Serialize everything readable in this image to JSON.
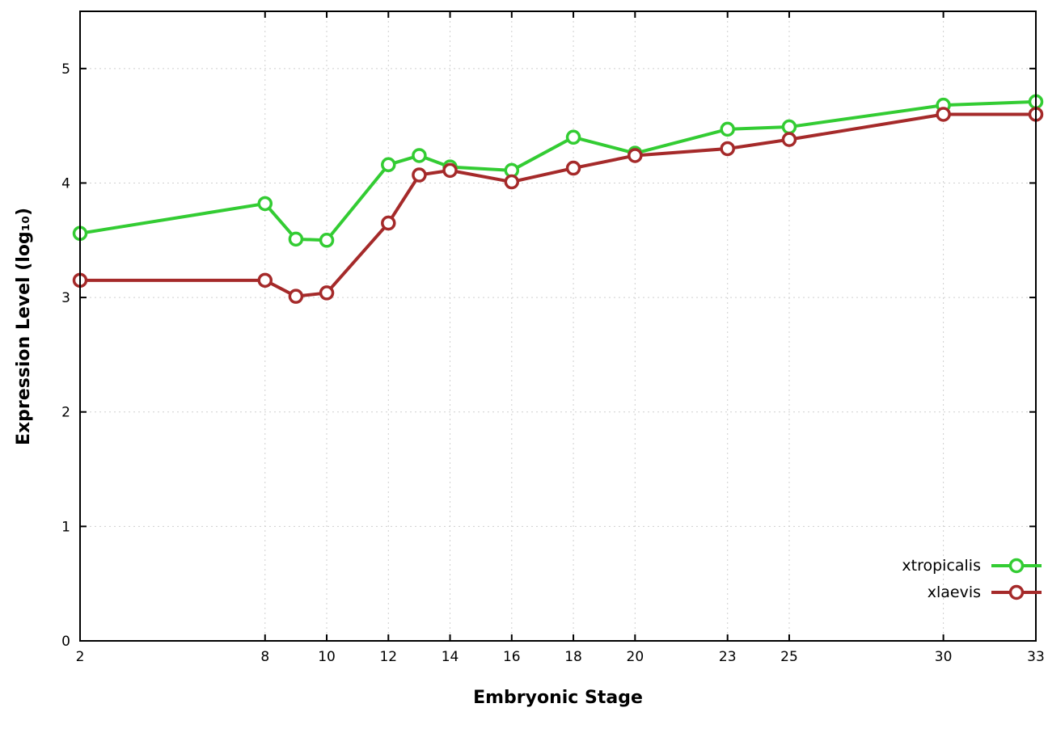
{
  "page": {
    "background": "#ffffff",
    "plot_border_color": "#000000",
    "grid_color": "#cfcfcf"
  },
  "chart_data": {
    "type": "line",
    "title": "",
    "xlabel": "Embryonic Stage",
    "ylabel": "Expression Level (log₁₀)",
    "xlim": [
      2,
      33
    ],
    "ylim": [
      0,
      5.5
    ],
    "xticks": [
      2,
      8,
      10,
      12,
      14,
      16,
      18,
      20,
      23,
      25,
      30,
      33
    ],
    "yticks": [
      0,
      1,
      2,
      3,
      4,
      5
    ],
    "grid": true,
    "marker": "open-circle",
    "line_width": 4,
    "legend_position": "inside bottom-right",
    "series": [
      {
        "name": "xtropicalis",
        "color": "#33cc33",
        "x": [
          2,
          8,
          9,
          10,
          12,
          13,
          14,
          16,
          18,
          20,
          23,
          25,
          30,
          33
        ],
        "y": [
          3.56,
          3.82,
          3.51,
          3.5,
          4.16,
          4.24,
          4.14,
          4.11,
          4.4,
          4.26,
          4.47,
          4.49,
          4.68,
          4.71
        ]
      },
      {
        "name": "xlaevis",
        "color": "#a52a2a",
        "x": [
          2,
          8,
          9,
          10,
          12,
          13,
          14,
          16,
          18,
          20,
          23,
          25,
          30,
          33
        ],
        "y": [
          3.15,
          3.15,
          3.01,
          3.04,
          3.65,
          4.07,
          4.11,
          4.01,
          4.13,
          4.24,
          4.3,
          4.38,
          4.6,
          4.6
        ]
      }
    ]
  }
}
